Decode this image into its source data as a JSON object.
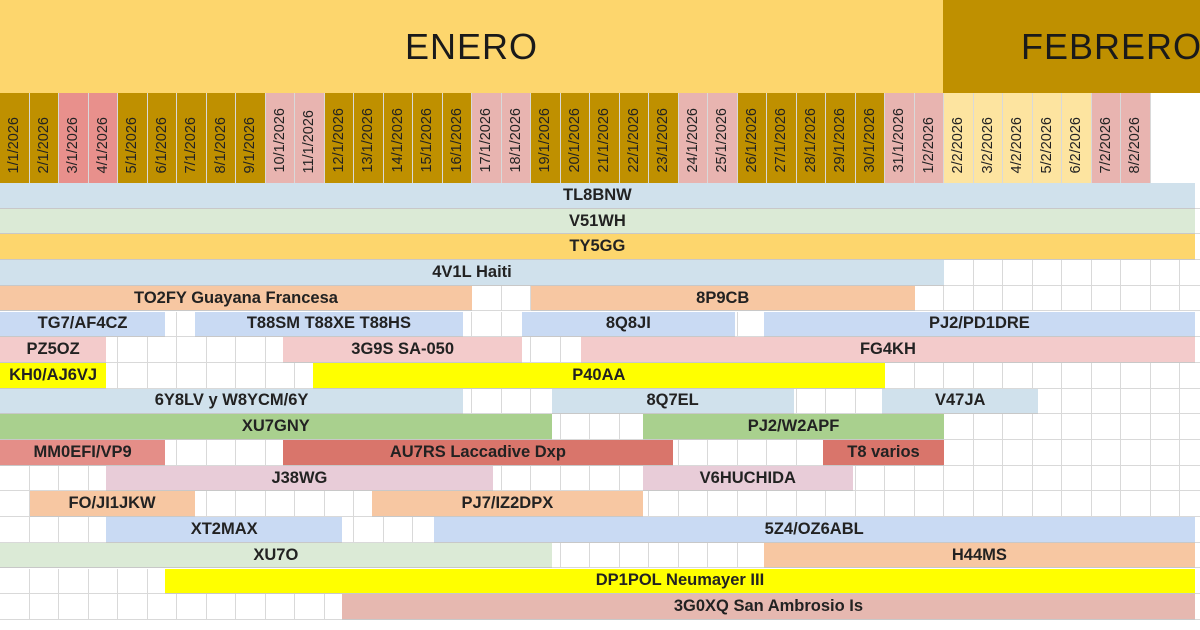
{
  "months": [
    {
      "label": "ENERO",
      "class": "month-enero"
    },
    {
      "label": "FEBRERO",
      "class": "month-febrero"
    }
  ],
  "dates": [
    "1/1/2026",
    "2/1/2026",
    "3/1/2026",
    "4/1/2026",
    "5/1/2026",
    "6/1/2026",
    "7/1/2026",
    "8/1/2026",
    "9/1/2026",
    "10/1/2026",
    "11/1/2026",
    "12/1/2026",
    "13/1/2026",
    "14/1/2026",
    "15/1/2026",
    "16/1/2026",
    "17/1/2026",
    "18/1/2026",
    "19/1/2026",
    "20/1/2026",
    "21/1/2026",
    "22/1/2026",
    "23/1/2026",
    "24/1/2026",
    "25/1/2026",
    "26/1/2026",
    "27/1/2026",
    "28/1/2026",
    "29/1/2026",
    "30/1/2026",
    "31/1/2026",
    "1/2/2026",
    "2/2/2026",
    "3/2/2026",
    "4/2/2026",
    "5/2/2026",
    "6/2/2026",
    "7/2/2026",
    "8/2/2026"
  ],
  "date_colors": [
    "#bf9000",
    "#bf9000",
    "#e8908c",
    "#e8908c",
    "#bf9000",
    "#bf9000",
    "#bf9000",
    "#bf9000",
    "#bf9000",
    "#e8b4b0",
    "#e8b4b0",
    "#bf9000",
    "#bf9000",
    "#bf9000",
    "#bf9000",
    "#bf9000",
    "#e8b4b0",
    "#e8b4b0",
    "#bf9000",
    "#bf9000",
    "#bf9000",
    "#bf9000",
    "#bf9000",
    "#e8b4b0",
    "#e8b4b0",
    "#bf9000",
    "#bf9000",
    "#bf9000",
    "#bf9000",
    "#bf9000",
    "#e8b4b0",
    "#e8b4b0",
    "#fde4a0",
    "#fde4a0",
    "#fde4a0",
    "#fde4a0",
    "#fde4a0",
    "#e8b4b0",
    "#e8b4b0"
  ],
  "rows": [
    [
      {
        "text": "TL8BNW",
        "start": 0,
        "end": 40.5,
        "color": "#d0e1ec"
      }
    ],
    [
      {
        "text": "V51WH",
        "start": 0,
        "end": 40.5,
        "color": "#dbead6"
      }
    ],
    [
      {
        "text": "TY5GG",
        "start": 0,
        "end": 40.5,
        "color": "#fdd66d"
      }
    ],
    [
      {
        "text": "4V1L Haiti",
        "start": 0,
        "end": 32,
        "color": "#d0e1ec"
      }
    ],
    [
      {
        "text": "TO2FY Guayana Francesa",
        "start": 0,
        "end": 16,
        "color": "#f7c7a2"
      },
      {
        "text": "8P9CB",
        "start": 18,
        "end": 31,
        "color": "#f7c7a2"
      }
    ],
    [
      {
        "text": "TG7/AF4CZ",
        "start": 0,
        "end": 5.6,
        "color": "#c9daf3"
      },
      {
        "text": "T88SM T88XE T88HS",
        "start": 6.6,
        "end": 15.7,
        "color": "#c9daf3"
      },
      {
        "text": "8Q8JI",
        "start": 17.7,
        "end": 24.9,
        "color": "#c9daf3"
      },
      {
        "text": "PJ2/PD1DRE",
        "start": 25.9,
        "end": 40.5,
        "color": "#c9daf3"
      }
    ],
    [
      {
        "text": "PZ5OZ",
        "start": 0,
        "end": 3.6,
        "color": "#f3cbcb"
      },
      {
        "text": "3G9S SA-050",
        "start": 9.6,
        "end": 17.7,
        "color": "#f3cbcb"
      },
      {
        "text": "FG4KH",
        "start": 19.7,
        "end": 40.5,
        "color": "#f3cbcb"
      }
    ],
    [
      {
        "text": "KH0/AJ6VJ",
        "start": 0,
        "end": 3.6,
        "color": "#ffff00"
      },
      {
        "text": "P40AA",
        "start": 10.6,
        "end": 30,
        "color": "#ffff00"
      }
    ],
    [
      {
        "text": "6Y8LV y W8YCM/6Y",
        "start": 0,
        "end": 15.7,
        "color": "#d0e1ec"
      },
      {
        "text": "8Q7EL",
        "start": 18.7,
        "end": 26.9,
        "color": "#d0e1ec"
      },
      {
        "text": "V47JA",
        "start": 29.9,
        "end": 35.2,
        "color": "#d0e1ec"
      }
    ],
    [
      {
        "text": "XU7GNY",
        "start": 0,
        "end": 18.7,
        "color": "#a9d08e"
      },
      {
        "text": "PJ2/W2APF",
        "start": 21.8,
        "end": 32,
        "color": "#a9d08e"
      }
    ],
    [
      {
        "text": "MM0EFI/VP9",
        "start": 0,
        "end": 5.6,
        "color": "#e48e88"
      },
      {
        "text": "AU7RS Laccadive Dxp",
        "start": 9.6,
        "end": 22.8,
        "color": "#d9756b"
      },
      {
        "text": "T8 varios",
        "start": 27.9,
        "end": 32,
        "color": "#d9756b"
      }
    ],
    [
      {
        "text": "J38WG",
        "start": 3.6,
        "end": 16.7,
        "color": "#e8ccd8"
      },
      {
        "text": "V6HUCHIDA",
        "start": 21.8,
        "end": 28.9,
        "color": "#e8ccd8"
      }
    ],
    [
      {
        "text": "FO/JI1JKW",
        "start": 1,
        "end": 6.6,
        "color": "#f7c7a2"
      },
      {
        "text": "PJ7/IZ2DPX",
        "start": 12.6,
        "end": 21.8,
        "color": "#f7c7a2"
      }
    ],
    [
      {
        "text": "XT2MAX",
        "start": 3.6,
        "end": 11.6,
        "color": "#c9daf3"
      },
      {
        "text": "5Z4/OZ6ABL",
        "start": 14.7,
        "end": 40.5,
        "color": "#c9daf3"
      }
    ],
    [
      {
        "text": "XU7O",
        "start": 0,
        "end": 18.7,
        "color": "#dbead6"
      },
      {
        "text": "H44MS",
        "start": 25.9,
        "end": 40.5,
        "color": "#f7c7a2"
      }
    ],
    [
      {
        "text": "DP1POL Neumayer III",
        "start": 5.6,
        "end": 40.5,
        "color": "#ffff00"
      }
    ],
    [
      {
        "text": "3G0XQ San Ambrosio Is",
        "start": 11.6,
        "end": 40.5,
        "color": "#e6b8b0"
      }
    ]
  ]
}
